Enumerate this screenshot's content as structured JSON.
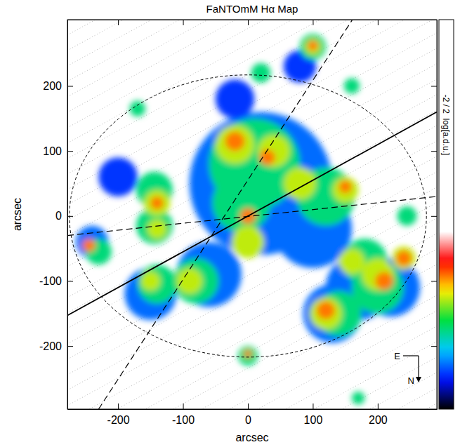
{
  "chart_data": {
    "type": "map",
    "title": "FaNTOmM Hα Map",
    "x_label": "arcsec",
    "y_label": "arcsec",
    "xlim": [
      -278,
      291
    ],
    "ylim": [
      -297,
      302
    ],
    "xticks": [
      -200,
      -100,
      0,
      100,
      200
    ],
    "yticks": [
      -200,
      -100,
      0,
      100,
      200
    ],
    "colorbar": {
      "label": "-2 / 2  log[a.d.u.]",
      "range": [
        -2,
        2
      ]
    },
    "compass": [
      "E",
      "N"
    ],
    "regions": {
      "x": [
        20,
        100,
        -60,
        170,
        220,
        -150,
        -200,
        -240,
        130,
        -20,
        80,
        10,
        -10,
        120,
        -144,
        -144,
        -80,
        180,
        200,
        140,
        -140,
        -230,
        245,
        100,
        20,
        0,
        170,
        -170,
        160,
        -20,
        40,
        80,
        0,
        -140,
        -140,
        150,
        120,
        200,
        160,
        -90,
        240,
        100,
        -150,
        -20,
        30,
        0,
        120,
        240,
        210,
        -245,
        100,
        150,
        -140,
        0
      ],
      "y": [
        50,
        -20,
        -90,
        -110,
        -110,
        -120,
        60,
        -40,
        -150,
        180,
        230,
        80,
        20,
        30,
        40,
        -15,
        -100,
        -70,
        -110,
        -150,
        -105,
        -55,
        0,
        260,
        220,
        -215,
        -280,
        165,
        200,
        110,
        100,
        50,
        -40,
        20,
        -20,
        40,
        -150,
        -90,
        -70,
        -100,
        -65,
        260,
        -100,
        115,
        90,
        0,
        -145,
        -65,
        -100,
        -45,
        262,
        45,
        20,
        -212
      ],
      "size": [
        110,
        60,
        50,
        50,
        45,
        40,
        30,
        25,
        45,
        30,
        25,
        70,
        45,
        45,
        28,
        28,
        35,
        35,
        40,
        35,
        30,
        20,
        15,
        20,
        15,
        15,
        10,
        12,
        12,
        30,
        25,
        25,
        25,
        20,
        15,
        20,
        25,
        25,
        20,
        20,
        18,
        12,
        15,
        15,
        12,
        12,
        14,
        12,
        14,
        10,
        8,
        10,
        10,
        6
      ],
      "values": [
        -1.0,
        -1.0,
        -1.0,
        -1.0,
        -1.0,
        -1.0,
        -1.2,
        -1.0,
        -1.0,
        -1.2,
        -1.2,
        -0.2,
        -0.2,
        -0.2,
        -0.2,
        -0.2,
        -0.2,
        -0.2,
        -0.2,
        -0.2,
        -0.2,
        -0.2,
        -0.2,
        -0.2,
        -0.2,
        -0.2,
        -0.2,
        -0.2,
        -0.2,
        0.5,
        0.5,
        0.5,
        0.5,
        0.5,
        0.5,
        0.5,
        0.5,
        0.5,
        0.5,
        0.5,
        0.5,
        0.5,
        0.5,
        1.0,
        1.0,
        1.0,
        1.0,
        1.0,
        1.0,
        1.0,
        1.0,
        1.0,
        1.0,
        1.0
      ]
    },
    "ellipse": {
      "cx": 0,
      "cy": 0,
      "rx": 275,
      "ry": 217
    },
    "lines": [
      {
        "line_style": "solid",
        "x": [
          -278,
          291
        ],
        "y": [
          -153,
          160
        ]
      },
      {
        "line_style": "dashed",
        "x": [
          -230,
          161
        ],
        "y": [
          -297,
          302
        ]
      },
      {
        "line_style": "dashed",
        "x": [
          -278,
          291
        ],
        "y": [
          -30,
          30
        ]
      }
    ]
  }
}
